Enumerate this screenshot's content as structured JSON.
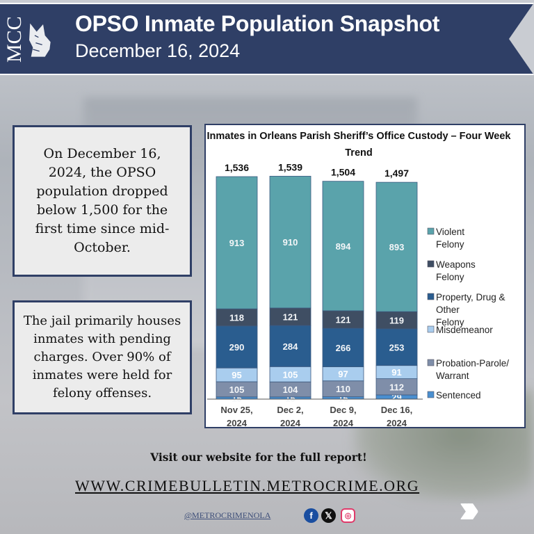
{
  "header": {
    "logo_text": "MCC",
    "title": "OPSO Inmate Population Snapshot",
    "subtitle": "December 16, 2024",
    "banner_color": "#2f3f66"
  },
  "callouts": [
    "On December 16, 2024, the OPSO population dropped below 1,500 for the first time since mid-October.",
    "The jail primarily houses inmates with pending charges. Over 90% of inmates were held for felony offenses."
  ],
  "chart_data": {
    "type": "bar",
    "stacked": true,
    "title": "Inmates in Orleans Parish Sheriff’s Office Custody – Four Week Trend",
    "categories": [
      "Nov 25, 2024",
      "Dec 2, 2024",
      "Dec 9, 2024",
      "Dec 16, 2024"
    ],
    "totals": [
      "1,536",
      "1,539",
      "1,504",
      "1,497"
    ],
    "total_values": [
      1536,
      1539,
      1504,
      1497
    ],
    "legend_placement": "right",
    "series": [
      {
        "name": "Sentenced",
        "color": "#4a8fcf",
        "values": [
          15,
          15,
          16,
          29
        ]
      },
      {
        "name": "Probation-Parole/ Warrant",
        "color": "#7f8ea9",
        "values": [
          105,
          104,
          110,
          112
        ]
      },
      {
        "name": "Misdemeanor",
        "color": "#a9cdee",
        "values": [
          95,
          105,
          97,
          91
        ]
      },
      {
        "name": "Property, Drug & Other Felony",
        "color": "#2a5d8f",
        "values": [
          290,
          284,
          266,
          253
        ]
      },
      {
        "name": "Weapons Felony",
        "color": "#3f4e63",
        "values": [
          118,
          121,
          121,
          119
        ]
      },
      {
        "name": "Violent Felony",
        "color": "#5aa3ab",
        "values": [
          913,
          910,
          894,
          893
        ]
      }
    ]
  },
  "footer": {
    "cta": "Visit our website for the full report!",
    "url": "WWW.CRIMEBULLETIN.METROCRIME.ORG",
    "handle": "@METROCRIMENOLA",
    "facebook_glyph": "f",
    "x_glyph": "𝕏",
    "instagram_glyph": "◎",
    "next_glyph": "›››"
  }
}
